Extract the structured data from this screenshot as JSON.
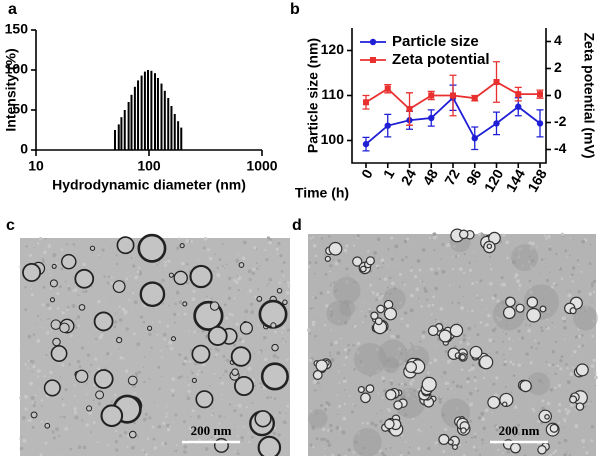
{
  "panel_labels": [
    "a",
    "b",
    "c",
    "d"
  ],
  "chart_data": [
    {
      "type": "bar",
      "x": [
        50,
        54,
        57,
        61,
        66,
        70,
        75,
        80,
        86,
        92,
        98,
        105,
        113,
        120,
        129,
        138,
        148,
        158,
        169,
        181,
        193
      ],
      "values": [
        25,
        32,
        41,
        50,
        60,
        69,
        79,
        87,
        93,
        98,
        100,
        99,
        96,
        90,
        83,
        74,
        65,
        55,
        45,
        36,
        28
      ],
      "color": "#000000",
      "xscale": "log",
      "xlim": [
        10,
        1000
      ],
      "xticks": [
        10,
        100,
        1000
      ],
      "ylim": [
        0,
        150
      ],
      "yticks": [
        0,
        50,
        100,
        150
      ],
      "xlabel": "Hydrodynamic diameter (nm)",
      "ylabel": "Intensity (%)"
    },
    {
      "type": "line",
      "categories": [
        "0",
        "1",
        "24",
        "48",
        "72",
        "96",
        "120",
        "144",
        "168"
      ],
      "series": [
        {
          "name": "Particle size",
          "color": "#1f1fd6",
          "marker": "circle",
          "values": [
            99.2,
            103.3,
            104.5,
            105,
            109.5,
            100.5,
            103.8,
            107.5,
            103.8
          ],
          "errors": [
            1.5,
            2.5,
            2,
            1.8,
            2.8,
            2.5,
            2.5,
            2,
            3
          ]
        },
        {
          "name": "Zeta potential",
          "color": "#e8312f",
          "marker": "square",
          "axis": "y2",
          "values": [
            -0.5,
            0.5,
            -1,
            0,
            0,
            -0.2,
            1,
            0.1,
            0.1
          ],
          "errors": [
            0.5,
            0.3,
            1.2,
            0.3,
            1.5,
            0.2,
            1.5,
            0.5,
            0.3
          ]
        }
      ],
      "ylim": [
        95,
        125
      ],
      "yticks": [
        100,
        110,
        120
      ],
      "y2lim": [
        -5,
        5
      ],
      "y2ticks": [
        -4,
        -2,
        0,
        2,
        4
      ],
      "xlabel": "Time (h)",
      "ylabel": "Particle size (nm)",
      "y2label": "Zeta potential (mV)",
      "legend": "upper left"
    }
  ],
  "images": [
    {
      "scale_bar": "200 nm"
    },
    {
      "scale_bar": "200 nm"
    }
  ]
}
